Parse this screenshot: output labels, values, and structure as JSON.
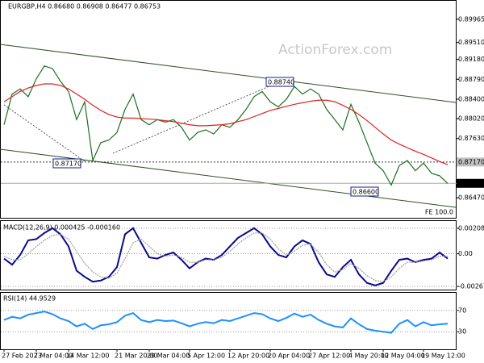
{
  "watermark": "ActionForex.com",
  "chart_data": [
    {
      "type": "line",
      "title": "EURGBP,H4  0.86680 0.86908 0.86477 0.86753",
      "categories": [
        "27 Feb 2023",
        null,
        null,
        null,
        "7 Mar 04:00",
        null,
        null,
        null,
        "14 Mar 12:00",
        null,
        null,
        null,
        null,
        null,
        "21 Mar 20:00",
        null,
        null,
        null,
        "29 Mar 04:00",
        null,
        null,
        null,
        null,
        "5 Apr 12:00",
        null,
        null,
        null,
        null,
        "12 Apr 20:00",
        null,
        null,
        null,
        null,
        "20 Apr 04:00",
        null,
        null,
        null,
        null,
        "27 Apr 12:00",
        null,
        null,
        null,
        null,
        "4 May 20:00",
        null,
        null,
        null,
        "12 May 04:00",
        null,
        null,
        null,
        null,
        "19 May 12:00",
        null,
        null,
        null
      ],
      "series": [
        {
          "color": "#1e6e1e",
          "values": [
            0.879,
            0.885,
            0.886,
            0.8845,
            0.888,
            0.8905,
            0.89,
            0.8875,
            0.8855,
            0.88,
            0.8835,
            0.872,
            0.8755,
            0.876,
            0.8775,
            0.882,
            0.885,
            0.88,
            0.879,
            0.88,
            0.8795,
            0.88,
            0.8785,
            0.876,
            0.8775,
            0.878,
            0.8772,
            0.879,
            0.8785,
            0.88,
            0.882,
            0.8845,
            0.8855,
            0.8835,
            0.8825,
            0.884,
            0.8865,
            0.885,
            0.886,
            0.885,
            0.882,
            0.88,
            0.878,
            0.883,
            0.8795,
            0.8755,
            0.8715,
            0.87,
            0.8672,
            0.871,
            0.872,
            0.87,
            0.8715,
            0.8695,
            0.869,
            0.8675
          ]
        },
        {
          "color": "#e02020",
          "values": [
            0.8835,
            0.8845,
            0.8855,
            0.8862,
            0.8867,
            0.887,
            0.887,
            0.8867,
            0.886,
            0.885,
            0.884,
            0.8828,
            0.8818,
            0.881,
            0.8805,
            0.8803,
            0.8803,
            0.8802,
            0.8801,
            0.88,
            0.8798,
            0.8796,
            0.8793,
            0.879,
            0.8788,
            0.8788,
            0.8789,
            0.879,
            0.8792,
            0.8796,
            0.88,
            0.8806,
            0.8812,
            0.8818,
            0.8822,
            0.8826,
            0.883,
            0.8833,
            0.8836,
            0.8838,
            0.8838,
            0.8835,
            0.8828,
            0.882,
            0.881,
            0.8798,
            0.8785,
            0.8772,
            0.876,
            0.8752,
            0.8745,
            0.8738,
            0.8732,
            0.8725,
            0.8718,
            0.8712
          ]
        }
      ],
      "ylim": [
        0.8611,
        0.9031
      ],
      "yticks": [
        {
          "value": 0.89965,
          "label": "0.89965"
        },
        {
          "value": 0.8951,
          "label": "0.89510"
        },
        {
          "value": 0.8918,
          "label": "0.89180"
        },
        {
          "value": 0.8879,
          "label": "0.88790"
        },
        {
          "value": 0.884,
          "label": "0.88400"
        },
        {
          "value": 0.8802,
          "label": "0.88020"
        },
        {
          "value": 0.8763,
          "label": "0.87630"
        },
        {
          "value": 0.8647,
          "label": "0.86470"
        }
      ],
      "level_labels": [
        {
          "value": 0.8717,
          "label": "0.87170"
        },
        {
          "value": 0.86753,
          "label": "0.86753"
        }
      ],
      "annotations": [
        "0.88740",
        "0.87170",
        "0.86600",
        "FE 100.0"
      ]
    },
    {
      "type": "line",
      "title": "MACD(12,26,9) 0.000425 -0.000160",
      "series": [
        {
          "color": "#0a0a8c",
          "values": [
            -0.0004,
            -0.0009,
            -0.0001,
            0.0011,
            0.0012,
            0.0017,
            0.0021,
            0.0016,
            0.0006,
            -0.0014,
            -0.0019,
            -0.0023,
            -0.0022,
            -0.0019,
            -0.0011,
            0.0016,
            0.0021,
            0.0009,
            -0.0003,
            -0.0004,
            -0.0001,
            0.0001,
            -0.0005,
            -0.0012,
            -0.0007,
            -0.0004,
            -0.0005,
            -0.0001,
            0.0006,
            0.0013,
            0.0017,
            0.0021,
            0.0016,
            0.0006,
            -0.0001,
            -0.0003,
            0.0006,
            0.0011,
            0.0008,
            -0.0007,
            -0.0017,
            -0.0019,
            -0.0011,
            -0.0005,
            -0.0017,
            -0.0024,
            -0.0026,
            -0.0024,
            -0.0014,
            -0.0005,
            -0.0004,
            -0.0007,
            -0.0005,
            -0.0004,
            0.0001,
            -0.0004
          ]
        },
        {
          "color": "#a0a0a0",
          "values": [
            -0.0002,
            -0.0005,
            -0.0005,
            0.0,
            0.0006,
            0.0011,
            0.0015,
            0.0016,
            0.0012,
            0.0002,
            -0.0008,
            -0.0015,
            -0.0019,
            -0.002,
            -0.0016,
            -0.0004,
            0.0009,
            0.0012,
            0.0006,
            0.0,
            -0.0002,
            -0.0001,
            -0.0003,
            -0.0007,
            -0.0007,
            -0.0005,
            -0.0005,
            -0.0003,
            0.0002,
            0.0008,
            0.0013,
            0.0017,
            0.0017,
            0.0012,
            0.0004,
            -0.0001,
            0.0002,
            0.0007,
            0.0008,
            0.0001,
            -0.0009,
            -0.0015,
            -0.0013,
            -0.0008,
            -0.0012,
            -0.0018,
            -0.0022,
            -0.0023,
            -0.0019,
            -0.0012,
            -0.0007,
            -0.0007,
            -0.0006,
            -0.0005,
            -0.0002,
            -0.0002
          ]
        }
      ],
      "ylim": [
        -0.00288,
        0.00262
      ],
      "yticks": [
        0.002088,
        {
          "value": 0,
          "label": "0.00"
        },
        -0.002679
      ]
    },
    {
      "type": "line",
      "title": "RSI(14) 44.9529",
      "series": [
        {
          "color": "#1e90ff",
          "values": [
            52,
            58,
            55,
            62,
            65,
            68,
            63,
            55,
            50,
            40,
            45,
            35,
            42,
            44,
            48,
            60,
            65,
            52,
            48,
            52,
            50,
            51,
            46,
            40,
            45,
            48,
            46,
            52,
            50,
            55,
            60,
            65,
            63,
            55,
            50,
            56,
            64,
            58,
            62,
            52,
            45,
            40,
            38,
            55,
            44,
            35,
            32,
            30,
            28,
            45,
            52,
            40,
            48,
            42,
            44,
            45
          ]
        }
      ],
      "ylim": [
        0,
        100
      ],
      "yticks": [
        70,
        30
      ]
    }
  ]
}
